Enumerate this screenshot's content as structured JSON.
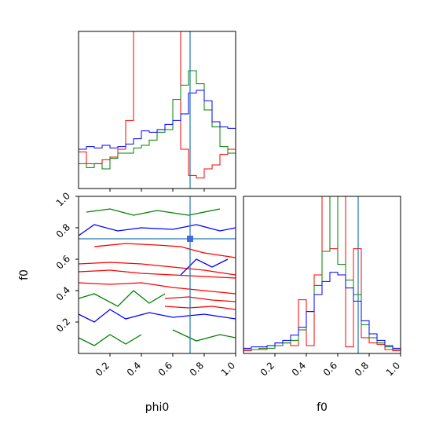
{
  "chart_data": [
    {
      "type": "histogram",
      "panel": "phi0-marginal",
      "xlim": [
        0,
        1
      ],
      "bins": [
        0.0,
        0.05,
        0.1,
        0.15,
        0.2,
        0.25,
        0.3,
        0.35,
        0.4,
        0.45,
        0.5,
        0.55,
        0.6,
        0.65,
        0.7,
        0.75,
        0.8,
        0.85,
        0.9,
        0.95,
        1.0
      ],
      "truth": 0.71,
      "series": [
        {
          "color": "#ff0000",
          "counts": [
            0.28,
            0.19,
            0.19,
            0.22,
            0.24,
            0.3,
            0.52,
            1.2,
            1.48,
            1.6,
            1.6,
            1.65,
            1.35,
            0.3,
            0.1,
            0.08,
            0.15,
            0.18,
            0.26,
            0.3
          ]
        },
        {
          "color": "#008000",
          "counts": [
            0.19,
            0.16,
            0.19,
            0.15,
            0.23,
            0.27,
            0.27,
            0.31,
            0.33,
            0.37,
            0.43,
            0.45,
            0.68,
            0.79,
            0.9,
            0.8,
            0.6,
            0.47,
            0.32,
            0.27
          ]
        },
        {
          "color": "#0000ff",
          "counts": [
            0.3,
            0.32,
            0.31,
            0.33,
            0.31,
            0.32,
            0.34,
            0.38,
            0.44,
            0.43,
            0.45,
            0.49,
            0.52,
            0.57,
            0.73,
            0.75,
            0.67,
            0.51,
            0.47,
            0.46
          ]
        }
      ]
    },
    {
      "type": "contour",
      "panel": "phi0-vs-f0",
      "xlabel": "phi0",
      "ylabel": "f0",
      "xlim": [
        0,
        1
      ],
      "ylim": [
        0,
        1
      ],
      "xticks": [
        "0.2",
        "0.4",
        "0.6",
        "0.8",
        "1.0"
      ],
      "yticks": [
        "0.2",
        "0.4",
        "0.6",
        "0.8",
        "1.0"
      ],
      "truth": {
        "x": 0.71,
        "y": 0.73
      },
      "series": [
        {
          "color": "#ff0000",
          "lines": [
            [
              [
                0.1,
                0.68
              ],
              [
                0.3,
                0.7
              ],
              [
                0.5,
                0.69
              ],
              [
                0.65,
                0.68
              ],
              [
                0.8,
                0.64
              ],
              [
                1.0,
                0.61
              ]
            ],
            [
              [
                0.0,
                0.57
              ],
              [
                0.2,
                0.58
              ],
              [
                0.4,
                0.57
              ],
              [
                0.6,
                0.55
              ],
              [
                0.8,
                0.53
              ],
              [
                1.0,
                0.5
              ]
            ],
            [
              [
                0.0,
                0.52
              ],
              [
                0.2,
                0.53
              ],
              [
                0.4,
                0.51
              ],
              [
                0.6,
                0.5
              ],
              [
                0.8,
                0.49
              ],
              [
                1.0,
                0.48
              ]
            ],
            [
              [
                0.0,
                0.45
              ],
              [
                0.2,
                0.44
              ],
              [
                0.4,
                0.45
              ],
              [
                0.6,
                0.42
              ],
              [
                0.8,
                0.4
              ],
              [
                1.0,
                0.38
              ]
            ],
            [
              [
                0.55,
                0.35
              ],
              [
                0.7,
                0.36
              ],
              [
                0.85,
                0.34
              ],
              [
                1.0,
                0.33
              ]
            ],
            [
              [
                0.55,
                0.3
              ],
              [
                0.7,
                0.29
              ],
              [
                0.85,
                0.3
              ],
              [
                1.0,
                0.28
              ]
            ]
          ]
        },
        {
          "color": "#008000",
          "lines": [
            [
              [
                0.05,
                0.9
              ],
              [
                0.2,
                0.92
              ],
              [
                0.35,
                0.88
              ],
              [
                0.5,
                0.91
              ],
              [
                0.7,
                0.88
              ],
              [
                0.9,
                0.92
              ]
            ],
            [
              [
                0.0,
                0.35
              ],
              [
                0.1,
                0.38
              ],
              [
                0.25,
                0.3
              ],
              [
                0.35,
                0.4
              ],
              [
                0.45,
                0.32
              ],
              [
                0.55,
                0.38
              ]
            ],
            [
              [
                0.6,
                0.15
              ],
              [
                0.75,
                0.08
              ],
              [
                0.9,
                0.12
              ],
              [
                1.0,
                0.1
              ]
            ],
            [
              [
                0.0,
                0.1
              ],
              [
                0.1,
                0.05
              ],
              [
                0.2,
                0.12
              ],
              [
                0.3,
                0.06
              ],
              [
                0.4,
                0.12
              ]
            ]
          ]
        },
        {
          "color": "#0000ff",
          "lines": [
            [
              [
                0.0,
                0.75
              ],
              [
                0.1,
                0.82
              ],
              [
                0.25,
                0.78
              ],
              [
                0.4,
                0.8
              ],
              [
                0.6,
                0.79
              ],
              [
                0.75,
                0.82
              ],
              [
                0.9,
                0.78
              ],
              [
                1.0,
                0.8
              ]
            ],
            [
              [
                0.0,
                0.25
              ],
              [
                0.1,
                0.2
              ],
              [
                0.2,
                0.28
              ],
              [
                0.3,
                0.22
              ],
              [
                0.45,
                0.26
              ],
              [
                0.6,
                0.23
              ],
              [
                0.8,
                0.25
              ],
              [
                1.0,
                0.22
              ]
            ],
            [
              [
                0.65,
                0.5
              ],
              [
                0.75,
                0.6
              ],
              [
                0.85,
                0.55
              ],
              [
                0.95,
                0.6
              ]
            ]
          ]
        }
      ]
    },
    {
      "type": "histogram",
      "panel": "f0-marginal",
      "xlabel": "f0",
      "xlim": [
        0,
        1
      ],
      "xticks": [
        "0.2",
        "0.4",
        "0.6",
        "0.8",
        "1.0"
      ],
      "bins": [
        0.0,
        0.05,
        0.1,
        0.15,
        0.2,
        0.25,
        0.3,
        0.35,
        0.4,
        0.45,
        0.5,
        0.55,
        0.6,
        0.65,
        0.7,
        0.75,
        0.8,
        0.85,
        0.9,
        0.95,
        1.0
      ],
      "truth": 0.73,
      "series": [
        {
          "color": "#ff0000",
          "counts": [
            0.02,
            0.03,
            0.03,
            0.06,
            0.08,
            0.08,
            0.06,
            0.41,
            0.06,
            0.6,
            1.2,
            0.8,
            1.2,
            0.05,
            0.8,
            0.12,
            0.08,
            0.07,
            0.03,
            0.02
          ]
        },
        {
          "color": "#008000",
          "counts": [
            0.03,
            0.03,
            0.04,
            0.04,
            0.06,
            0.08,
            0.1,
            0.18,
            0.32,
            0.52,
            0.78,
            1.2,
            0.68,
            0.56,
            0.45,
            0.22,
            0.12,
            0.08,
            0.05,
            0.03
          ]
        },
        {
          "color": "#0000ff",
          "counts": [
            0.04,
            0.05,
            0.05,
            0.06,
            0.08,
            0.1,
            0.14,
            0.2,
            0.32,
            0.45,
            0.55,
            0.62,
            0.6,
            0.5,
            0.4,
            0.25,
            0.15,
            0.1,
            0.06,
            0.04
          ]
        }
      ]
    }
  ]
}
